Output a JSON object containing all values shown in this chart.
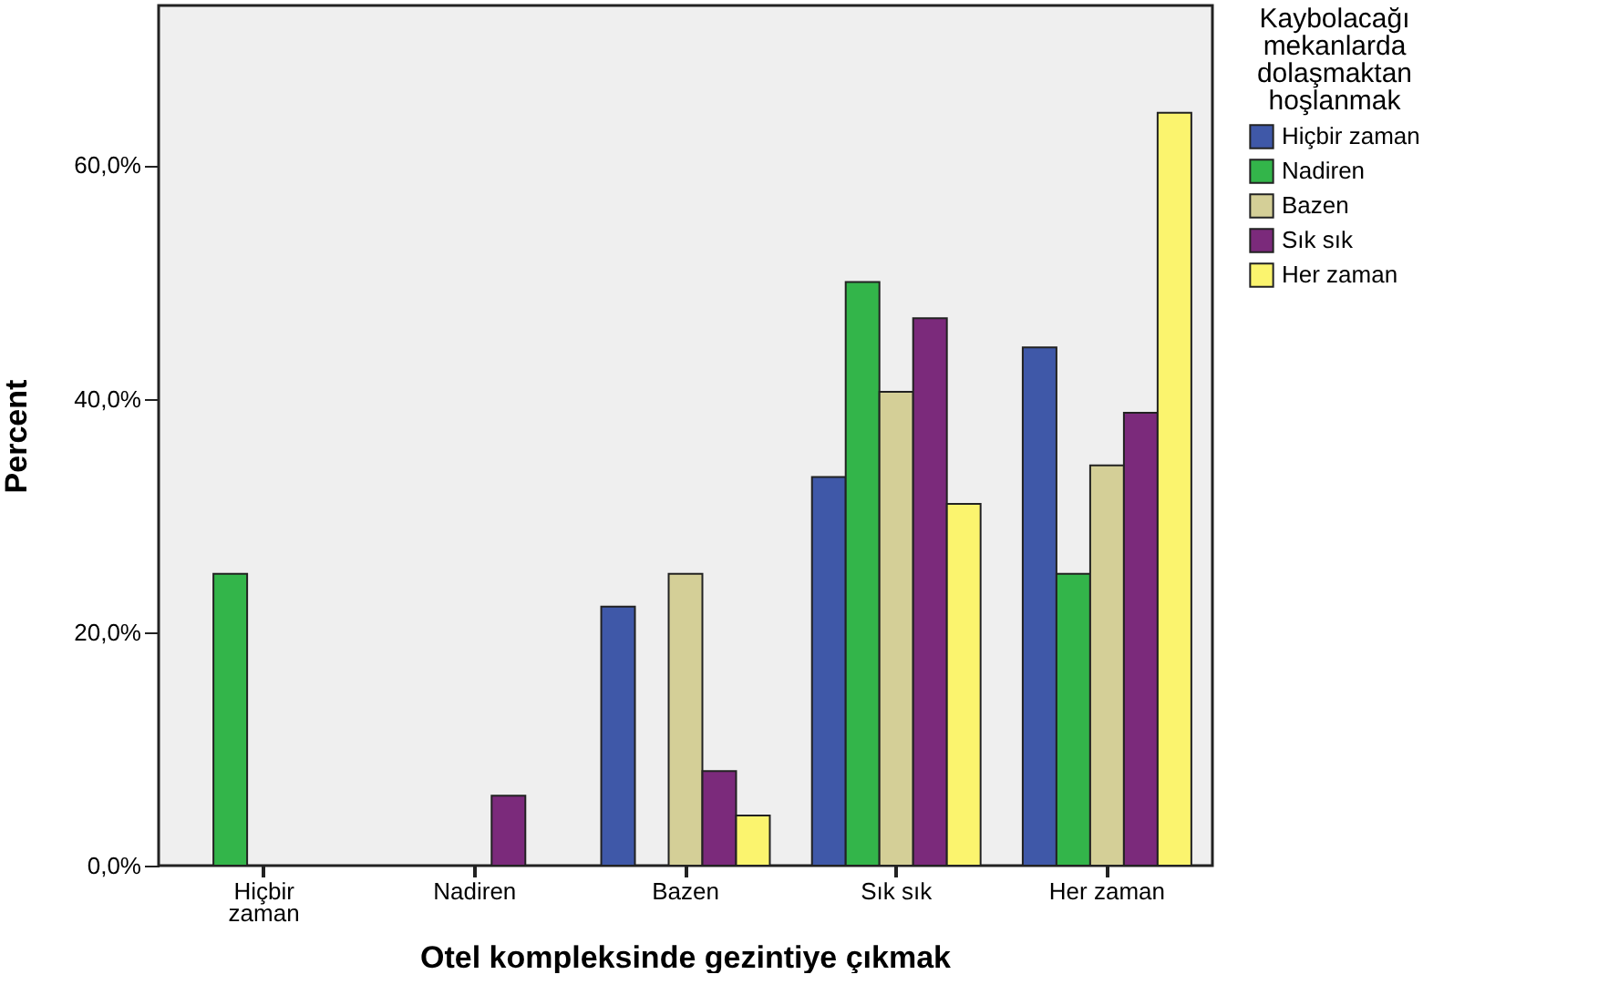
{
  "chart_data": {
    "type": "bar",
    "xlabel": "Otel kompleksinde gezintiye çıkmak",
    "ylabel": "Percent",
    "legend_title": "Kaybolacağı mekanlarda dolaşmaktan hoşlanmak",
    "legend": "top right",
    "grid": false,
    "categories": [
      "Hiçbir zaman",
      "Nadiren",
      "Bazen",
      "Sık sık",
      "Her zaman"
    ],
    "ylim": [
      0,
      73.7
    ],
    "yticks": [
      {
        "value": 0,
        "label": "0,0%"
      },
      {
        "value": 20,
        "label": "20,0%"
      },
      {
        "value": 40,
        "label": "40,0%"
      },
      {
        "value": 60,
        "label": "60,0%"
      }
    ],
    "series": [
      {
        "name": "Hiçbir zaman",
        "color": "#3f58a8",
        "values": [
          null,
          null,
          22.2,
          33.3,
          44.4
        ]
      },
      {
        "name": "Nadiren",
        "color": "#33b54a",
        "values": [
          25,
          null,
          null,
          50,
          25
        ]
      },
      {
        "name": "Bazen",
        "color": "#d4cf97",
        "values": [
          null,
          null,
          25,
          40.6,
          34.3
        ]
      },
      {
        "name": "Sık sık",
        "color": "#7b2a7b",
        "values": [
          null,
          6,
          8.1,
          46.9,
          38.8
        ]
      },
      {
        "name": "Her zaman",
        "color": "#fbf46e",
        "values": [
          null,
          null,
          4.3,
          31,
          64.5
        ]
      }
    ]
  }
}
